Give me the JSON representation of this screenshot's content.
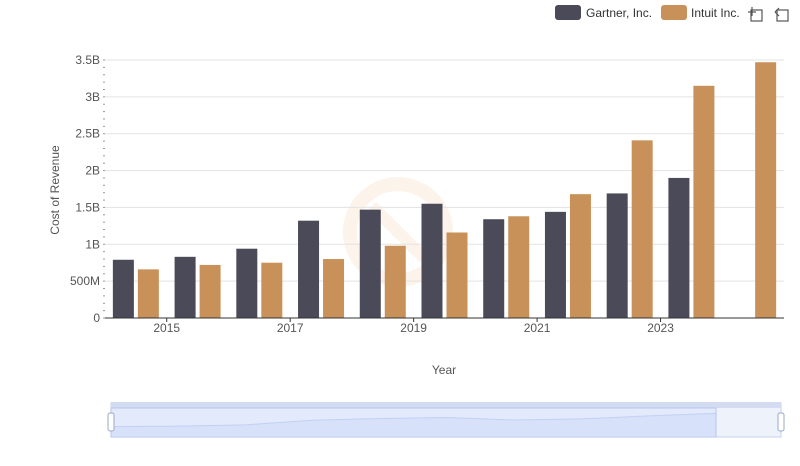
{
  "chart_data": {
    "type": "bar",
    "xlabel": "Year",
    "ylabel": "Cost of Revenue",
    "ylim": [
      0,
      3500000000
    ],
    "yticks": [
      {
        "value": 0,
        "label": "0"
      },
      {
        "value": 500000000,
        "label": "500M"
      },
      {
        "value": 1000000000,
        "label": "1B"
      },
      {
        "value": 1500000000,
        "label": "1.5B"
      },
      {
        "value": 2000000000,
        "label": "2B"
      },
      {
        "value": 2500000000,
        "label": "2.5B"
      },
      {
        "value": 3000000000,
        "label": "3B"
      },
      {
        "value": 3500000000,
        "label": "3.5B"
      }
    ],
    "categories": [
      "2014",
      "2015",
      "2016",
      "2017",
      "2018",
      "2019",
      "2020",
      "2021",
      "2022",
      "2023",
      "2024"
    ],
    "xtick_labels": [
      "2015",
      "2017",
      "2019",
      "2021",
      "2023"
    ],
    "series": [
      {
        "name": "Gartner, Inc.",
        "color": "#4a4a58",
        "values": [
          790000000,
          830000000,
          940000000,
          1320000000,
          1470000000,
          1550000000,
          1340000000,
          1440000000,
          1690000000,
          1900000000,
          null
        ]
      },
      {
        "name": "Intuit Inc.",
        "color": "#c8915a",
        "values": [
          660000000,
          720000000,
          750000000,
          800000000,
          980000000,
          1160000000,
          1380000000,
          1680000000,
          2410000000,
          3150000000,
          3470000000
        ]
      }
    ],
    "legend_position": "top-right",
    "grid": true
  },
  "toolbar": {
    "icons": [
      "zoom-icon",
      "reset-icon"
    ]
  }
}
